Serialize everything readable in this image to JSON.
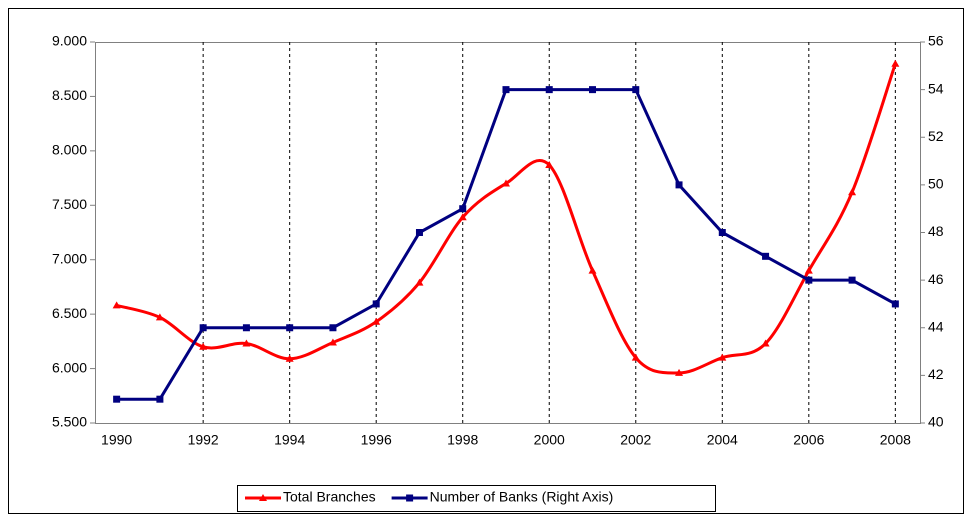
{
  "chart_data": {
    "type": "line",
    "x": [
      1990,
      1991,
      1992,
      1993,
      1994,
      1995,
      1996,
      1997,
      1998,
      1999,
      2000,
      2001,
      2002,
      2003,
      2004,
      2005,
      2006,
      2007,
      2008
    ],
    "series": [
      {
        "name": "Total Branches",
        "color": "#ff0000",
        "marker": "triangle",
        "smooth": true,
        "values": [
          6580,
          6470,
          6200,
          6230,
          6090,
          6240,
          6430,
          6790,
          7390,
          7700,
          7870,
          6900,
          6100,
          5960,
          6100,
          6230,
          6900,
          7620,
          8800
        ]
      },
      {
        "name": "Number of Banks (Right Axis)",
        "color": "#000080",
        "marker": "square",
        "axis": "y2",
        "values": [
          41,
          41,
          44,
          44,
          44,
          44,
          45,
          48,
          49,
          54,
          54,
          54,
          54,
          50,
          48,
          47,
          46,
          46,
          45
        ]
      }
    ],
    "xlim": [
      1989.5,
      2008.57
    ],
    "xticks": [
      1990,
      1992,
      1994,
      1996,
      1998,
      2000,
      2002,
      2004,
      2006,
      2008
    ],
    "ylim": [
      5500,
      9000
    ],
    "yticks": [
      {
        "value": 5500,
        "label": "5.500"
      },
      {
        "value": 6000,
        "label": "6.000"
      },
      {
        "value": 6500,
        "label": "6.500"
      },
      {
        "value": 7000,
        "label": "7.000"
      },
      {
        "value": 7500,
        "label": "7.500"
      },
      {
        "value": 8000,
        "label": "8.000"
      },
      {
        "value": 8500,
        "label": "8.500"
      },
      {
        "value": 9000,
        "label": "9.000"
      }
    ],
    "y2lim": [
      40,
      56
    ],
    "y2ticks": [
      40,
      42,
      44,
      46,
      48,
      50,
      52,
      54,
      56
    ],
    "grid": "x",
    "legend": "bottom"
  }
}
